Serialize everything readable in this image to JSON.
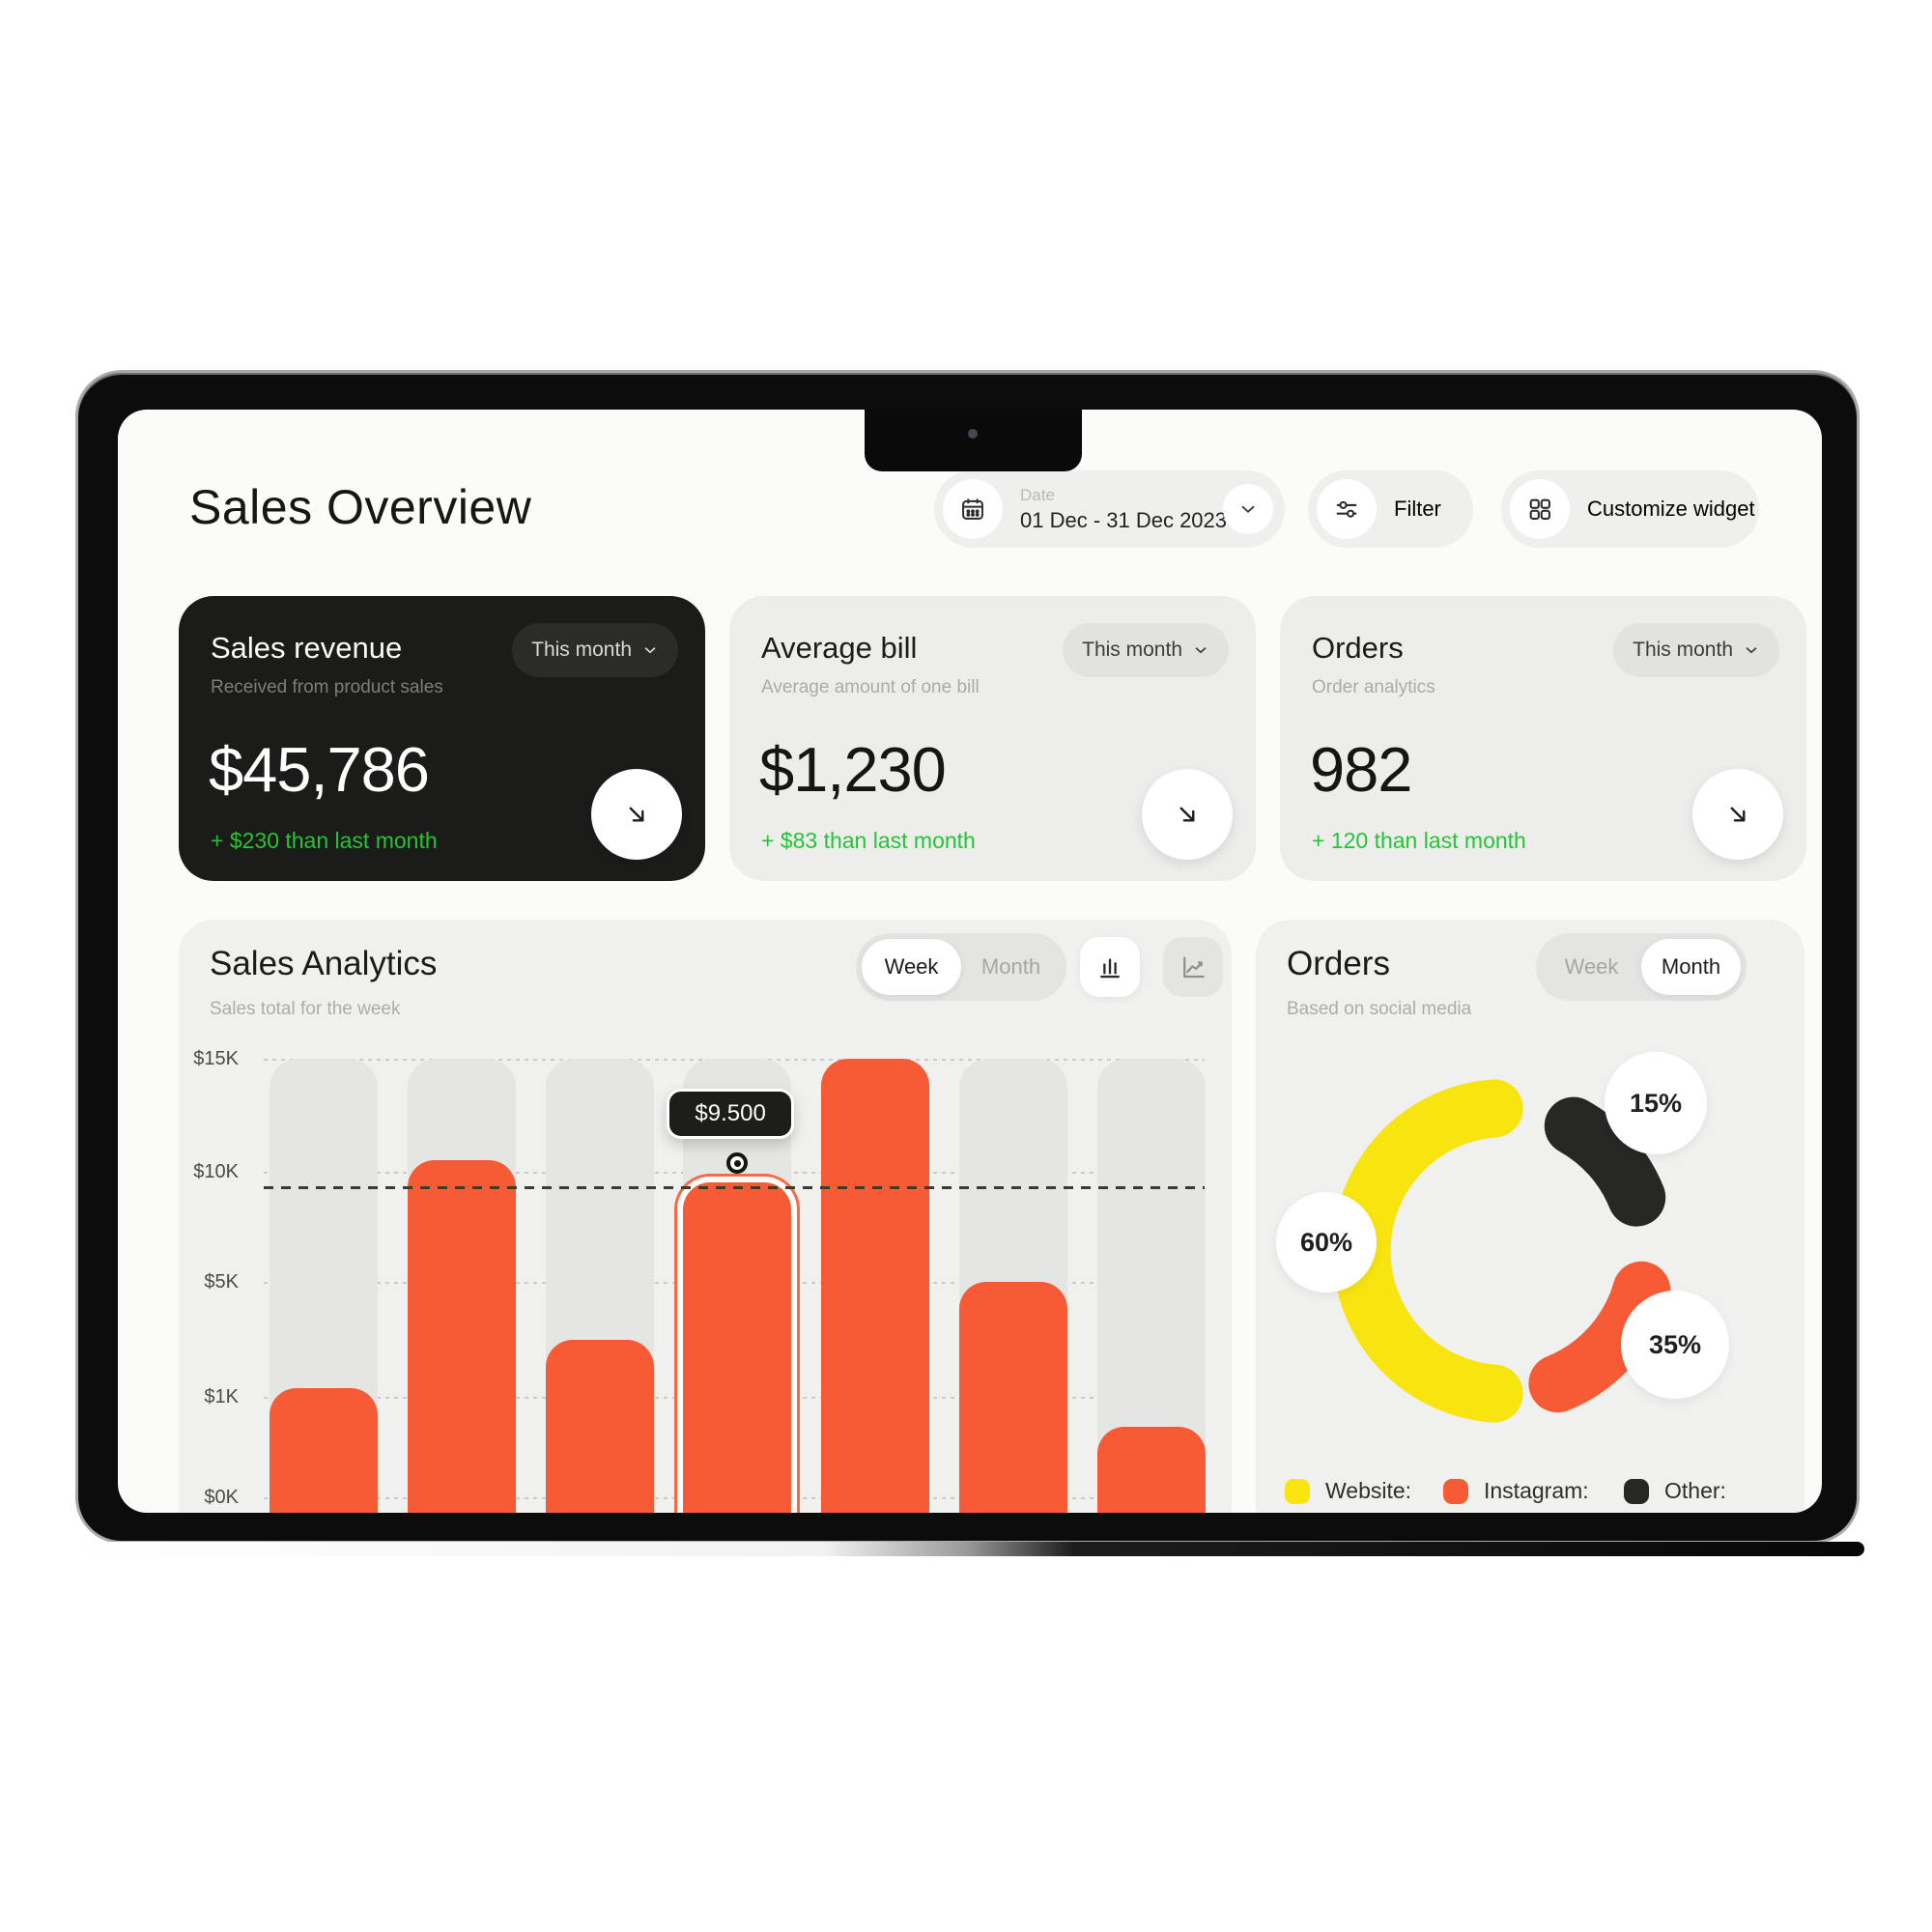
{
  "page": {
    "title": "Sales Overview"
  },
  "header": {
    "date_label": "Date",
    "date_value": "01 Dec - 31 Dec 2023",
    "filter_label": "Filter",
    "customize_label": "Customize widget"
  },
  "kpis": [
    {
      "title": "Sales revenue",
      "subtitle": "Received from product sales",
      "period": "This month",
      "value": "$45,786",
      "delta": "+ $230 than last month",
      "theme": "dark"
    },
    {
      "title": "Average bill",
      "subtitle": "Average amount of one bill",
      "period": "This month",
      "value": "$1,230",
      "delta": "+ $83 than last month",
      "theme": "light"
    },
    {
      "title": "Orders",
      "subtitle": "Order analytics",
      "period": "This month",
      "value": "982",
      "delta": "+ 120 than last month",
      "theme": "light"
    }
  ],
  "analytics": {
    "title": "Sales Analytics",
    "subtitle": "Sales total for the week",
    "toggle": {
      "week": "Week",
      "month": "Month",
      "active": "Week"
    },
    "tooltip": "$9.500"
  },
  "orders_chart": {
    "title": "Orders",
    "subtitle": "Based on social media",
    "toggle": {
      "week": "Week",
      "month": "Month",
      "active": "Month"
    },
    "badges": [
      "60%",
      "15%",
      "35%"
    ],
    "legend": [
      {
        "label": "Website:",
        "color": "#F8E40F"
      },
      {
        "label": "Instagram:",
        "color": "#F75B36"
      },
      {
        "label": "Other:",
        "color": "#272725"
      }
    ]
  },
  "chart_data": [
    {
      "type": "bar",
      "title": "Sales Analytics",
      "subtitle": "Sales total for the week",
      "values": [
        1300,
        10500,
        3000,
        9500,
        15000,
        5000,
        700
      ],
      "highlight_index": 3,
      "highlight_label": "$9.500",
      "reference_value": 9500,
      "y_ticks": [
        "$15K",
        "$10K",
        "$5K",
        "$1K",
        "$0K"
      ],
      "y_tick_values": [
        15000,
        10000,
        5000,
        1000,
        0
      ],
      "bar_color": "#F75B36",
      "grid": "dotted horizontal"
    },
    {
      "type": "pie",
      "title": "Orders",
      "subtitle": "Based on social media",
      "labels": [
        "Website",
        "Instagram",
        "Other"
      ],
      "values": [
        60,
        35,
        15
      ],
      "colors": [
        "#F8E40F",
        "#F75B36",
        "#272725"
      ],
      "legend_position": "bottom"
    }
  ],
  "colors": {
    "accent_orange": "#F75B36",
    "accent_yellow": "#F8E40F",
    "accent_black": "#272725",
    "positive_green": "#27C337",
    "dark_card": "#1B1B19",
    "light_card": "#EDEDEC",
    "panel": "#F0F0EF"
  }
}
